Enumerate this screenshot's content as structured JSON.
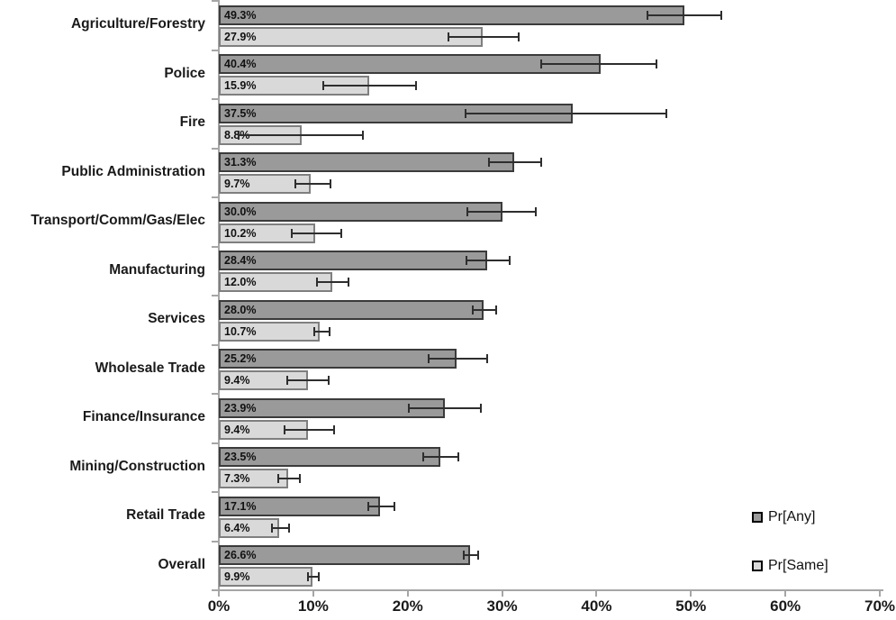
{
  "chart_data": {
    "type": "bar",
    "orientation": "horizontal",
    "title": "",
    "xlabel": "",
    "ylabel": "",
    "xlim": [
      0,
      70
    ],
    "grid": false,
    "x_tick_labels": [
      "0%",
      "10%",
      "20%",
      "30%",
      "40%",
      "50%",
      "60%",
      "70%"
    ],
    "x_tick_values": [
      0,
      10,
      20,
      30,
      40,
      50,
      60,
      70
    ],
    "categories": [
      "Agriculture/Forestry",
      "Police",
      "Fire",
      "Public Administration",
      "Transport/Comm/Gas/Elec",
      "Manufacturing",
      "Services",
      "Wholesale Trade",
      "Finance/Insurance",
      "Mining/Construction",
      "Retail Trade",
      "Overall"
    ],
    "series": [
      {
        "name": "Pr[Any]",
        "color": "#9a9a9a",
        "border_color": "#3b3b3b",
        "values": [
          49.3,
          40.4,
          37.5,
          31.3,
          30.0,
          28.4,
          28.0,
          25.2,
          23.9,
          23.5,
          17.1,
          26.6
        ],
        "labels": [
          "49.3%",
          "40.4%",
          "37.5%",
          "31.3%",
          "30.0%",
          "28.4%",
          "28.0%",
          "25.2%",
          "23.9%",
          "23.5%",
          "17.1%",
          "26.6%"
        ],
        "err_low": [
          45.3,
          34.0,
          26.0,
          28.5,
          26.2,
          26.1,
          26.8,
          22.1,
          20.0,
          21.6,
          15.7,
          25.8
        ],
        "err_high": [
          53.3,
          46.4,
          47.5,
          34.2,
          33.7,
          30.9,
          29.5,
          28.5,
          27.8,
          25.5,
          18.7,
          27.6
        ]
      },
      {
        "name": "Pr[Same]",
        "color": "#d9d9d9",
        "border_color": "#7f7f7f",
        "values": [
          27.9,
          15.9,
          8.8,
          9.7,
          10.2,
          12.0,
          10.7,
          9.4,
          9.4,
          7.3,
          6.4,
          9.9
        ],
        "labels": [
          "27.9%",
          "15.9%",
          "8.8%",
          "9.7%",
          "10.2%",
          "12.0%",
          "10.7%",
          "9.4%",
          "9.4%",
          "7.3%",
          "6.4%",
          "9.9%"
        ],
        "err_low": [
          24.2,
          11.0,
          2.0,
          8.0,
          7.6,
          10.3,
          10.0,
          7.2,
          6.9,
          6.2,
          5.5,
          9.3
        ],
        "err_high": [
          31.9,
          21.0,
          15.4,
          11.9,
          13.1,
          13.8,
          11.8,
          11.7,
          12.3,
          8.7,
          7.5,
          10.7
        ]
      }
    ],
    "legend": {
      "position": "right-bottom",
      "entries": [
        {
          "label": "Pr[Any]"
        },
        {
          "label": "Pr[Same]"
        }
      ]
    },
    "colors": {
      "axis": "#a6a6a6",
      "error_bar": "#2e2e2e",
      "text": "#1a1a1a"
    }
  }
}
